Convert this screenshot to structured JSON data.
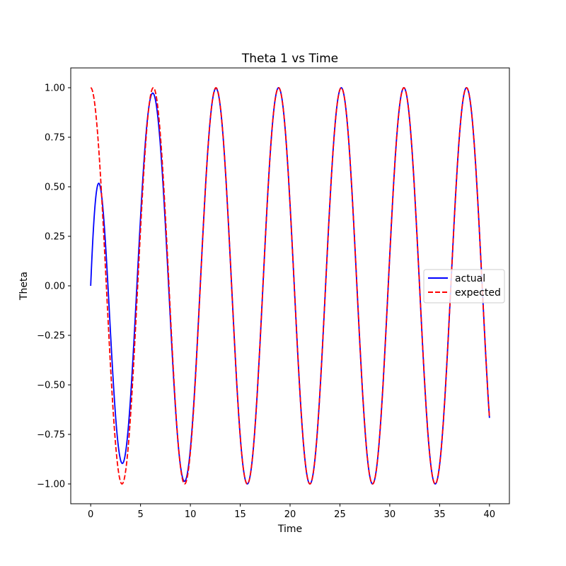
{
  "chart_data": {
    "type": "line",
    "title": "Theta 1 vs Time",
    "xlabel": "Time",
    "ylabel": "Theta",
    "xlim": [
      -2,
      42
    ],
    "ylim": [
      -1.1,
      1.1
    ],
    "xticks": [
      0,
      5,
      10,
      15,
      20,
      25,
      30,
      35,
      40
    ],
    "xtick_labels": [
      "0",
      "5",
      "10",
      "15",
      "20",
      "25",
      "30",
      "35",
      "40"
    ],
    "yticks": [
      -1.0,
      -0.75,
      -0.5,
      -0.25,
      0.0,
      0.25,
      0.5,
      0.75,
      1.0
    ],
    "ytick_labels": [
      "−1.00",
      "−0.75",
      "−0.50",
      "−0.25",
      "0.00",
      "0.25",
      "0.50",
      "0.75",
      "1.00"
    ],
    "grid": false,
    "legend_position": "center-right",
    "x_range": [
      0,
      40
    ],
    "series": [
      {
        "name": "actual",
        "color": "#0000ff",
        "linestyle": "solid",
        "description": "starts at 0, peaks ~0.27 near t=0.6, dips to ~-1.04 near t=3.2, then converges to cos(t)",
        "points": [
          [
            0,
            0.0
          ],
          [
            0.6,
            0.27
          ],
          [
            1.5,
            0.0
          ],
          [
            2.5,
            -0.75
          ],
          [
            3.2,
            -1.04
          ],
          [
            4.5,
            -0.2
          ],
          [
            6.28,
            1.0
          ],
          [
            9.42,
            -1.0
          ],
          [
            12.57,
            1.0
          ],
          [
            15.71,
            -1.0
          ],
          [
            18.85,
            1.0
          ],
          [
            21.99,
            -1.0
          ],
          [
            25.13,
            1.0
          ],
          [
            28.27,
            -1.0
          ],
          [
            31.42,
            1.0
          ],
          [
            34.56,
            -1.0
          ],
          [
            37.7,
            1.0
          ],
          [
            40,
            -0.667
          ]
        ]
      },
      {
        "name": "expected",
        "color": "#ff0000",
        "linestyle": "dashed",
        "function": "cos(t)",
        "points": [
          [
            0,
            1.0
          ],
          [
            3.14,
            -1.0
          ],
          [
            6.28,
            1.0
          ],
          [
            9.42,
            -1.0
          ],
          [
            12.57,
            1.0
          ],
          [
            15.71,
            -1.0
          ],
          [
            18.85,
            1.0
          ],
          [
            21.99,
            -1.0
          ],
          [
            25.13,
            1.0
          ],
          [
            28.27,
            -1.0
          ],
          [
            31.42,
            1.0
          ],
          [
            34.56,
            -1.0
          ],
          [
            37.7,
            1.0
          ],
          [
            40,
            -0.667
          ]
        ]
      }
    ]
  }
}
